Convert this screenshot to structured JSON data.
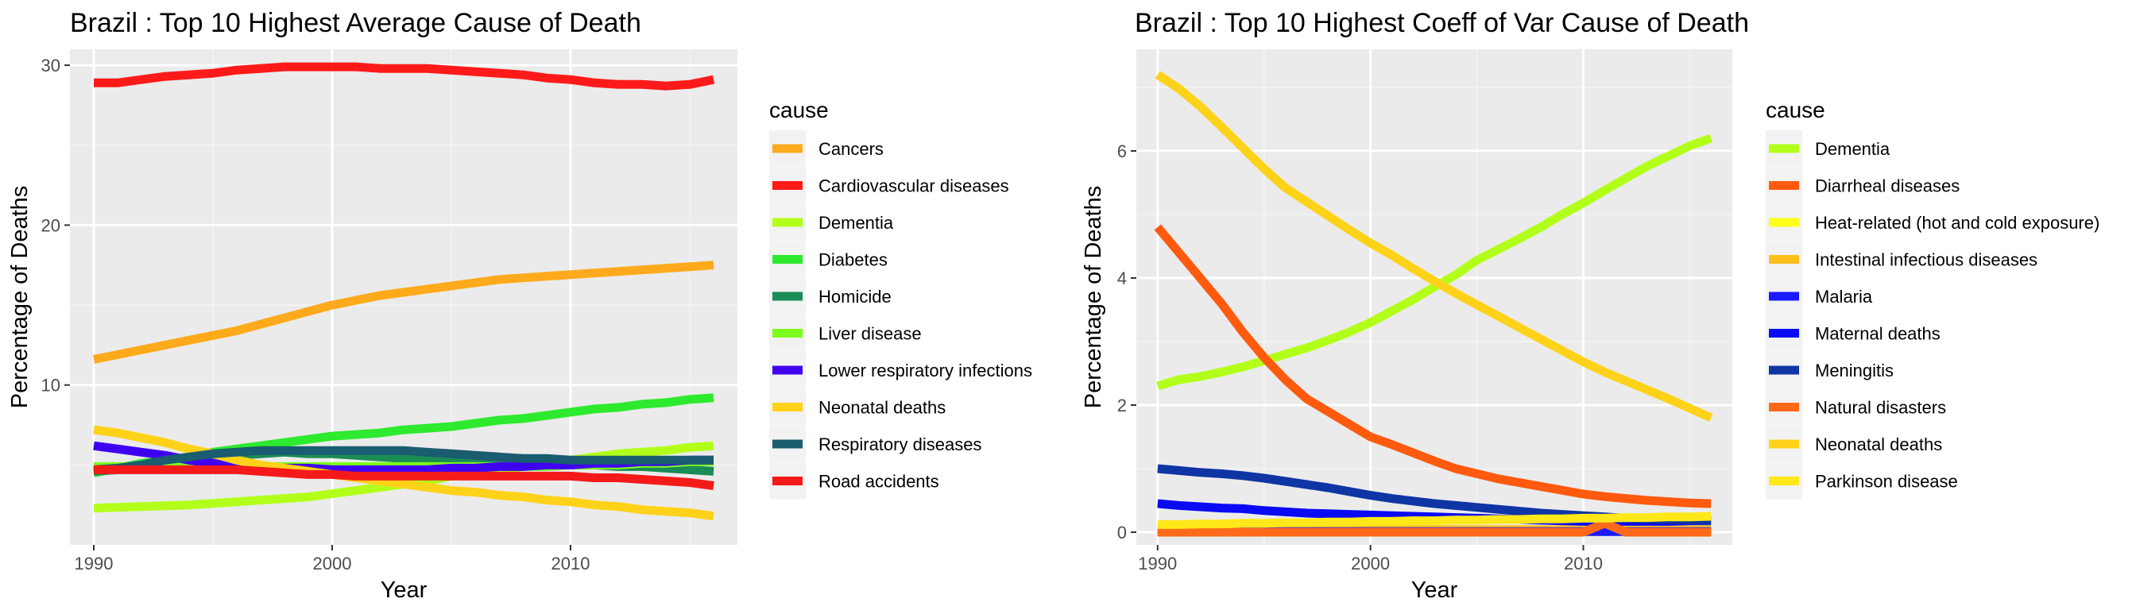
{
  "chart_data": [
    {
      "type": "line",
      "title": "Brazil : Top  10  Highest Average Cause of Death",
      "xlabel": "Year",
      "ylabel": "Percentage of Deaths",
      "xlim": [
        1989,
        2017
      ],
      "ylim": [
        0,
        31
      ],
      "xticks": [
        1990,
        2000,
        2010
      ],
      "yticks": [
        10,
        20,
        30
      ],
      "grid": true,
      "legend_title": "cause",
      "legend_position": "right",
      "x": [
        1990,
        1991,
        1992,
        1993,
        1994,
        1995,
        1996,
        1997,
        1998,
        1999,
        2000,
        2001,
        2002,
        2003,
        2004,
        2005,
        2006,
        2007,
        2008,
        2009,
        2010,
        2011,
        2012,
        2013,
        2014,
        2015,
        2016
      ],
      "series": [
        {
          "name": "Cancers",
          "color": "#FFAA1D",
          "values": [
            11.6,
            11.9,
            12.2,
            12.5,
            12.8,
            13.1,
            13.4,
            13.8,
            14.2,
            14.6,
            15.0,
            15.3,
            15.6,
            15.8,
            16.0,
            16.2,
            16.4,
            16.6,
            16.7,
            16.8,
            16.9,
            17.0,
            17.1,
            17.2,
            17.3,
            17.4,
            17.5
          ]
        },
        {
          "name": "Cardiovascular diseases",
          "color": "#FF1A1A",
          "values": [
            28.9,
            28.9,
            29.1,
            29.3,
            29.4,
            29.5,
            29.7,
            29.8,
            29.9,
            29.9,
            29.9,
            29.9,
            29.8,
            29.8,
            29.8,
            29.7,
            29.6,
            29.5,
            29.4,
            29.2,
            29.1,
            28.9,
            28.8,
            28.8,
            28.7,
            28.8,
            29.1
          ]
        },
        {
          "name": "Dementia",
          "color": "#B2FF1A",
          "values": [
            2.3,
            2.35,
            2.4,
            2.45,
            2.5,
            2.6,
            2.7,
            2.8,
            2.9,
            3.0,
            3.2,
            3.4,
            3.6,
            3.8,
            4.0,
            4.3,
            4.5,
            4.7,
            4.9,
            5.1,
            5.3,
            5.5,
            5.7,
            5.8,
            5.9,
            6.1,
            6.2
          ]
        },
        {
          "name": "Diabetes",
          "color": "#2EEA2E",
          "values": [
            4.5,
            4.8,
            5.1,
            5.3,
            5.5,
            5.8,
            6.0,
            6.2,
            6.4,
            6.6,
            6.8,
            6.9,
            7.0,
            7.2,
            7.3,
            7.4,
            7.6,
            7.8,
            7.9,
            8.1,
            8.3,
            8.5,
            8.6,
            8.8,
            8.9,
            9.1,
            9.2
          ]
        },
        {
          "name": "Homicide",
          "color": "#1A8C55",
          "values": [
            4.6,
            4.7,
            4.9,
            5.1,
            5.3,
            5.5,
            5.6,
            5.7,
            5.8,
            5.7,
            5.7,
            5.6,
            5.5,
            5.4,
            5.4,
            5.3,
            5.2,
            5.2,
            5.1,
            5.1,
            5.0,
            5.0,
            4.9,
            4.9,
            4.8,
            4.7,
            4.6
          ]
        },
        {
          "name": "Liver disease",
          "color": "#7CFC1A",
          "values": [
            4.9,
            4.9,
            4.9,
            4.9,
            4.9,
            4.9,
            4.9,
            4.9,
            4.9,
            4.9,
            4.9,
            4.9,
            4.9,
            4.9,
            4.9,
            4.9,
            4.9,
            4.9,
            4.9,
            4.9,
            5.0,
            5.0,
            5.0,
            5.1,
            5.1,
            5.2,
            5.2
          ]
        },
        {
          "name": "Lower respiratory infections",
          "color": "#4000F0",
          "values": [
            6.2,
            6.0,
            5.8,
            5.6,
            5.3,
            5.1,
            5.0,
            4.9,
            4.8,
            4.8,
            4.7,
            4.7,
            4.7,
            4.7,
            4.7,
            4.8,
            4.8,
            4.9,
            4.9,
            5.0,
            5.0,
            5.1,
            5.1,
            5.2,
            5.2,
            5.3,
            5.3
          ]
        },
        {
          "name": "Neonatal deaths",
          "color": "#FFD21A",
          "values": [
            7.2,
            7.0,
            6.7,
            6.4,
            6.0,
            5.7,
            5.3,
            5.0,
            4.8,
            4.6,
            4.4,
            4.2,
            4.0,
            3.8,
            3.6,
            3.4,
            3.3,
            3.1,
            3.0,
            2.8,
            2.7,
            2.5,
            2.4,
            2.2,
            2.1,
            2.0,
            1.8
          ]
        },
        {
          "name": "Respiratory diseases",
          "color": "#1A5C70",
          "values": [
            4.7,
            4.8,
            5.0,
            5.3,
            5.5,
            5.7,
            5.8,
            5.9,
            5.9,
            5.9,
            5.9,
            5.9,
            5.9,
            5.9,
            5.8,
            5.7,
            5.6,
            5.5,
            5.4,
            5.4,
            5.3,
            5.3,
            5.3,
            5.3,
            5.3,
            5.3,
            5.3
          ]
        },
        {
          "name": "Road accidents",
          "color": "#F51A1A",
          "values": [
            4.7,
            4.7,
            4.7,
            4.7,
            4.7,
            4.7,
            4.7,
            4.6,
            4.5,
            4.4,
            4.4,
            4.3,
            4.3,
            4.3,
            4.3,
            4.3,
            4.3,
            4.3,
            4.3,
            4.3,
            4.3,
            4.2,
            4.2,
            4.1,
            4.0,
            3.9,
            3.7
          ]
        }
      ]
    },
    {
      "type": "line",
      "title": "Brazil : Top  10  Highest Coeff of Var Cause of Death",
      "xlabel": "Year",
      "ylabel": "Percentage of Deaths",
      "xlim": [
        1989,
        2017
      ],
      "ylim": [
        -0.2,
        7.6
      ],
      "xticks": [
        1990,
        2000,
        2010
      ],
      "yticks": [
        0,
        2,
        4,
        6
      ],
      "grid": true,
      "legend_title": "cause",
      "legend_position": "right",
      "x": [
        1990,
        1991,
        1992,
        1993,
        1994,
        1995,
        1996,
        1997,
        1998,
        1999,
        2000,
        2001,
        2002,
        2003,
        2004,
        2005,
        2006,
        2007,
        2008,
        2009,
        2010,
        2011,
        2012,
        2013,
        2014,
        2015,
        2016
      ],
      "series": [
        {
          "name": "Dementia",
          "color": "#B2FF1A",
          "values": [
            2.3,
            2.4,
            2.45,
            2.52,
            2.6,
            2.7,
            2.8,
            2.9,
            3.02,
            3.15,
            3.3,
            3.48,
            3.66,
            3.86,
            4.05,
            4.28,
            4.45,
            4.62,
            4.8,
            5.0,
            5.18,
            5.38,
            5.57,
            5.76,
            5.92,
            6.08,
            6.2
          ]
        },
        {
          "name": "Diarrheal diseases",
          "color": "#FF5A0D",
          "values": [
            4.8,
            4.4,
            4.0,
            3.6,
            3.15,
            2.75,
            2.4,
            2.1,
            1.9,
            1.7,
            1.5,
            1.38,
            1.25,
            1.12,
            1.0,
            0.92,
            0.84,
            0.78,
            0.72,
            0.66,
            0.6,
            0.56,
            0.53,
            0.5,
            0.48,
            0.46,
            0.45
          ]
        },
        {
          "name": "Heat-related (hot and cold exposure)",
          "color": "#FFFF1A",
          "values": [
            0.02,
            0.02,
            0.02,
            0.02,
            0.02,
            0.02,
            0.02,
            0.02,
            0.02,
            0.02,
            0.02,
            0.02,
            0.02,
            0.02,
            0.02,
            0.02,
            0.02,
            0.02,
            0.02,
            0.02,
            0.02,
            0.02,
            0.02,
            0.02,
            0.02,
            0.02,
            0.02
          ]
        },
        {
          "name": "Intestinal infectious diseases",
          "color": "#FFBF1A",
          "values": [
            0.04,
            0.04,
            0.04,
            0.04,
            0.04,
            0.04,
            0.04,
            0.04,
            0.04,
            0.04,
            0.04,
            0.04,
            0.04,
            0.04,
            0.04,
            0.04,
            0.04,
            0.04,
            0.04,
            0.04,
            0.04,
            0.04,
            0.04,
            0.04,
            0.04,
            0.04,
            0.04
          ]
        },
        {
          "name": "Malaria",
          "color": "#1A1AFF",
          "values": [
            0.01,
            0.01,
            0.01,
            0.01,
            0.01,
            0.01,
            0.01,
            0.01,
            0.01,
            0.01,
            0.01,
            0.01,
            0.01,
            0.01,
            0.01,
            0.01,
            0.01,
            0.01,
            0.01,
            0.01,
            0.01,
            0.01,
            0.01,
            0.01,
            0.01,
            0.01,
            0.01
          ]
        },
        {
          "name": "Maternal deaths",
          "color": "#0A0AF5",
          "values": [
            0.45,
            0.42,
            0.4,
            0.38,
            0.37,
            0.34,
            0.32,
            0.3,
            0.29,
            0.28,
            0.27,
            0.26,
            0.25,
            0.24,
            0.23,
            0.22,
            0.21,
            0.2,
            0.19,
            0.18,
            0.17,
            0.17,
            0.17,
            0.17,
            0.17,
            0.18,
            0.18
          ]
        },
        {
          "name": "Meningitis",
          "color": "#0F35A5",
          "values": [
            1.0,
            0.97,
            0.94,
            0.92,
            0.89,
            0.85,
            0.8,
            0.75,
            0.7,
            0.64,
            0.58,
            0.53,
            0.49,
            0.45,
            0.42,
            0.39,
            0.36,
            0.33,
            0.3,
            0.28,
            0.26,
            0.24,
            0.22,
            0.21,
            0.2,
            0.19,
            0.18
          ]
        },
        {
          "name": "Natural disasters",
          "color": "#FF6A1A",
          "values": [
            0.0,
            0.0,
            0.0,
            0.0,
            0.0,
            0.0,
            0.0,
            0.0,
            0.0,
            0.0,
            0.0,
            0.0,
            0.0,
            0.0,
            0.0,
            0.0,
            0.0,
            0.0,
            0.0,
            0.0,
            0.0,
            0.14,
            0.0,
            0.0,
            0.0,
            0.0,
            0.0
          ]
        },
        {
          "name": "Neonatal deaths",
          "color": "#FFD21A",
          "values": [
            7.2,
            6.98,
            6.7,
            6.38,
            6.05,
            5.72,
            5.42,
            5.2,
            4.98,
            4.76,
            4.55,
            4.36,
            4.15,
            3.95,
            3.76,
            3.58,
            3.4,
            3.22,
            3.04,
            2.86,
            2.68,
            2.52,
            2.38,
            2.24,
            2.1,
            1.95,
            1.8
          ]
        },
        {
          "name": "Parkinson disease",
          "color": "#FFE81A",
          "values": [
            0.12,
            0.12,
            0.13,
            0.13,
            0.14,
            0.14,
            0.15,
            0.15,
            0.16,
            0.16,
            0.17,
            0.17,
            0.18,
            0.18,
            0.19,
            0.19,
            0.2,
            0.2,
            0.21,
            0.21,
            0.22,
            0.22,
            0.23,
            0.23,
            0.24,
            0.24,
            0.25
          ]
        }
      ]
    }
  ]
}
